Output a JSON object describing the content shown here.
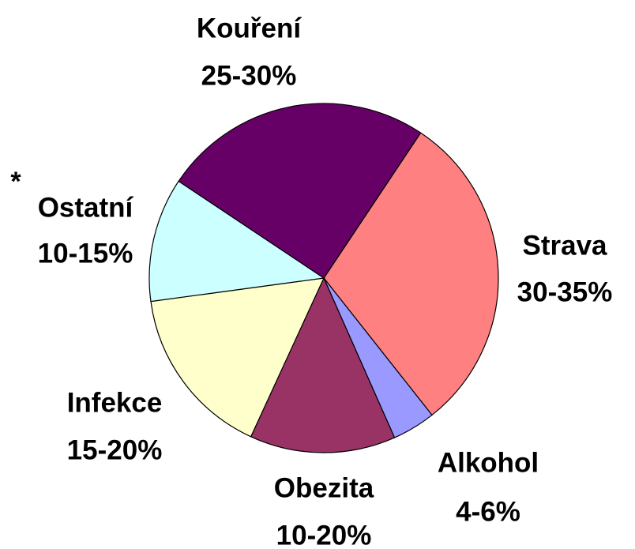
{
  "chart_data": {
    "type": "pie",
    "categories": [
      "Strava",
      "Alkohol",
      "Obezita",
      "Infekce",
      "Ostatní",
      "Kouření"
    ],
    "values": [
      30,
      4,
      13.5,
      16,
      11.5,
      25
    ],
    "value_labels": [
      "30-35%",
      "4-6%",
      "10-20%",
      "15-20%",
      "10-15%",
      "25-30%"
    ],
    "colors": [
      "#ff8080",
      "#9999ff",
      "#993366",
      "#ffffcc",
      "#ccffff",
      "#660066"
    ],
    "annotation": "*"
  }
}
